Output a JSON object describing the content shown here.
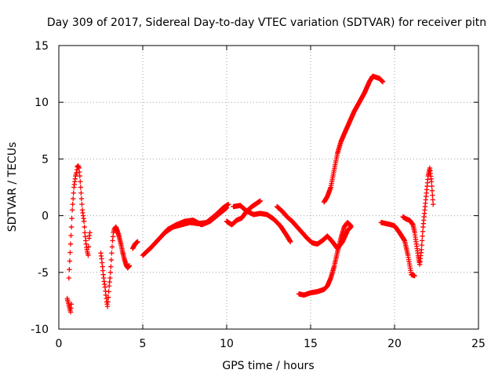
{
  "chart_data": {
    "type": "scatter",
    "title": "Day 309 of 2017, Sidereal Day-to-day VTEC variation (SDTVAR) for receiver pitn",
    "xlabel": "GPS time / hours",
    "ylabel": "SDTVAR / TECUs",
    "xlim": [
      0,
      25
    ],
    "ylim": [
      -10,
      15
    ],
    "xticks": [
      0,
      5,
      10,
      15,
      20,
      25
    ],
    "yticks": [
      -10,
      -5,
      0,
      5,
      10,
      15
    ],
    "xtick_labels": [
      "0",
      "5",
      "10",
      "15",
      "20",
      "25"
    ],
    "ytick_labels": [
      "-10",
      "-5",
      "0",
      "5",
      "10",
      "15"
    ],
    "grid": true,
    "marker": "+",
    "color": "#ff0000",
    "series": [
      {
        "name": "seg1",
        "x": [
          0.5,
          0.55,
          0.6,
          0.65,
          0.7,
          0.75
        ],
        "y": [
          -7.3,
          -7.6,
          -7.9,
          -8.2,
          -8.5,
          -7.8
        ]
      },
      {
        "name": "seg2",
        "x": [
          0.6,
          0.65,
          0.7,
          0.75,
          0.8,
          0.85,
          0.9,
          0.95,
          1.0,
          1.05,
          1.1,
          1.15,
          1.2,
          1.25,
          1.3,
          1.35,
          1.4,
          1.45,
          1.5,
          1.55,
          1.6,
          1.65,
          1.7,
          1.75,
          1.8,
          1.85
        ],
        "y": [
          -5.5,
          -4,
          -2.5,
          -1,
          0.5,
          1.5,
          2.5,
          3,
          3.5,
          3.8,
          4.3,
          4.4,
          4.2,
          3.5,
          2.5,
          1.5,
          0.5,
          0,
          -0.5,
          -1.5,
          -2.2,
          -2.8,
          -3.2,
          -3.5,
          -2,
          -1.5
        ]
      },
      {
        "name": "seg3",
        "x": [
          2.5,
          2.55,
          2.6,
          2.65,
          2.7,
          2.75,
          2.8,
          2.85,
          2.9,
          2.95,
          3.0,
          3.05,
          3.1,
          3.15,
          3.2,
          3.25,
          3.3,
          3.35,
          3.4
        ],
        "y": [
          -3.3,
          -3.8,
          -4.5,
          -5.2,
          -5.8,
          -6.3,
          -7,
          -7.6,
          -8,
          -7.2,
          -6.2,
          -5.5,
          -4.5,
          -3.3,
          -2.2,
          -1.5,
          -1.2,
          -1.1,
          -1
        ]
      },
      {
        "name": "seg4",
        "x": [
          3.4,
          3.5,
          3.6,
          3.7,
          3.8,
          3.9,
          4.0,
          4.1,
          4.2
        ],
        "y": [
          -1,
          -1.4,
          -1.9,
          -2.5,
          -3.2,
          -3.8,
          -4.3,
          -4.6,
          -4.4
        ]
      },
      {
        "name": "seg5",
        "x": [
          4.4,
          4.5,
          4.6,
          4.7
        ],
        "y": [
          -2.9,
          -2.6,
          -2.4,
          -2.3
        ]
      },
      {
        "name": "seg6",
        "x": [
          5.0,
          5.5,
          6.0,
          6.5,
          7.0,
          7.5,
          8.0,
          8.5,
          9.0,
          9.5,
          10.0
        ],
        "y": [
          -3.5,
          -2.8,
          -2,
          -1.2,
          -0.8,
          -0.5,
          -0.4,
          -0.8,
          -0.5,
          0.1,
          0.7
        ]
      },
      {
        "name": "seg7",
        "x": [
          6.3,
          6.8,
          7.3,
          7.8,
          8.3,
          8.8,
          9.3,
          9.8,
          10.1
        ],
        "y": [
          -1.5,
          -1,
          -0.8,
          -0.6,
          -0.7,
          -0.6,
          0,
          0.7,
          1
        ]
      },
      {
        "name": "seg8",
        "x": [
          10.0,
          10.3,
          10.6,
          10.9,
          11.2,
          11.5,
          11.8,
          12.0
        ],
        "y": [
          -0.5,
          -0.8,
          -0.4,
          -0.2,
          0.4,
          0.8,
          1.1,
          1.3
        ]
      },
      {
        "name": "seg9",
        "x": [
          10.4,
          10.8,
          11.2,
          11.6,
          12.0,
          12.4,
          12.8,
          13.2,
          13.6,
          13.8
        ],
        "y": [
          0.8,
          0.9,
          0.4,
          0.1,
          0.2,
          0.1,
          -0.3,
          -0.9,
          -1.8,
          -2.3
        ]
      },
      {
        "name": "seg10",
        "x": [
          13.0,
          13.3,
          13.6,
          13.9,
          14.2,
          14.5,
          14.8,
          15.1,
          15.4,
          15.7,
          16.0,
          16.3,
          16.6,
          16.9,
          17.2,
          17.4
        ],
        "y": [
          0.8,
          0.4,
          -0.1,
          -0.5,
          -1,
          -1.5,
          -2,
          -2.4,
          -2.5,
          -2.2,
          -1.8,
          -2.3,
          -2.9,
          -2.3,
          -1.3,
          -1
        ]
      },
      {
        "name": "seg11",
        "x": [
          14.3,
          14.6,
          15.0,
          15.4,
          15.8,
          16.0,
          16.2,
          16.4,
          16.6,
          16.8,
          17.0,
          17.2,
          17.4
        ],
        "y": [
          -6.9,
          -7,
          -6.8,
          -6.7,
          -6.5,
          -6.2,
          -5.5,
          -4.5,
          -3.2,
          -2,
          -1,
          -0.6,
          -0.9
        ]
      },
      {
        "name": "seg12",
        "x": [
          15.8,
          16.0,
          16.2,
          16.4,
          16.6,
          16.8,
          17.0,
          17.3,
          17.6,
          17.9,
          18.2,
          18.5,
          18.7,
          18.9,
          19.1,
          19.3
        ],
        "y": [
          1.2,
          1.7,
          2.5,
          4,
          5.5,
          6.5,
          7.2,
          8.2,
          9.2,
          10,
          10.8,
          11.8,
          12.3,
          12.2,
          12.1,
          11.8
        ]
      },
      {
        "name": "seg13",
        "x": [
          19.2,
          19.5,
          19.8,
          20.0,
          20.3,
          20.6,
          20.8,
          21.0,
          21.2
        ],
        "y": [
          -0.6,
          -0.7,
          -0.8,
          -0.9,
          -1.5,
          -2.2,
          -3.5,
          -5.2,
          -5.3
        ]
      },
      {
        "name": "seg14",
        "x": [
          20.5,
          20.7,
          20.9,
          21.1,
          21.2,
          21.3,
          21.4,
          21.5,
          21.6,
          21.7,
          21.8,
          21.9,
          22.0,
          22.1,
          22.2,
          22.3
        ],
        "y": [
          -0.1,
          -0.3,
          -0.4,
          -0.8,
          -1.5,
          -2.5,
          -3.5,
          -4.3,
          -3,
          -1,
          0.5,
          2,
          3.5,
          4.2,
          3,
          1
        ]
      }
    ]
  }
}
